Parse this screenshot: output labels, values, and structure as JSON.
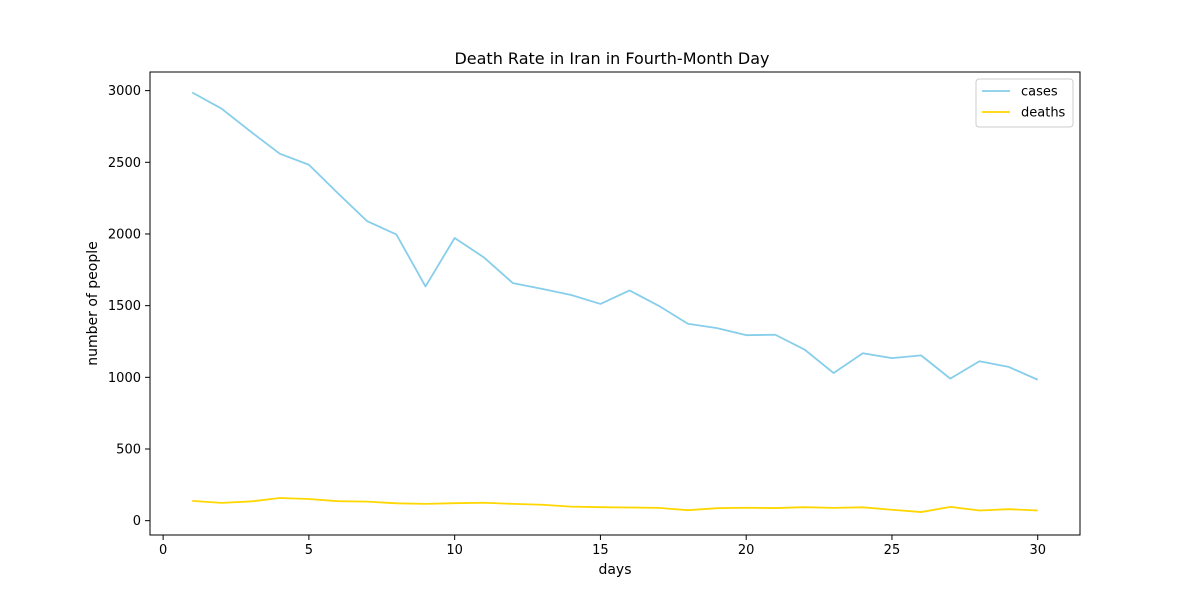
{
  "chart_data": {
    "type": "line",
    "title": "Death Rate in Iran in Fourth-Month Day",
    "xlabel": "days",
    "ylabel": "number of people",
    "xlim": [
      -0.45,
      31.45
    ],
    "ylim": [
      -100,
      3130
    ],
    "xticks": [
      0,
      5,
      10,
      15,
      20,
      25,
      30
    ],
    "yticks": [
      0,
      500,
      1000,
      1500,
      2000,
      2500,
      3000
    ],
    "grid": false,
    "legend": "top-right",
    "x": [
      1,
      2,
      3,
      4,
      5,
      6,
      7,
      8,
      9,
      10,
      11,
      12,
      13,
      14,
      15,
      16,
      17,
      18,
      19,
      20,
      21,
      22,
      23,
      24,
      25,
      26,
      27,
      28,
      29,
      30
    ],
    "series": [
      {
        "name": "cases",
        "color": "#87ceeb",
        "values": [
          2987,
          2875,
          2715,
          2560,
          2483,
          2283,
          2089,
          1997,
          1634,
          1972,
          1837,
          1657,
          1617,
          1574,
          1512,
          1606,
          1499,
          1374,
          1343,
          1294,
          1297,
          1194,
          1030,
          1168,
          1134,
          1153,
          991,
          1112,
          1073,
          983
        ]
      },
      {
        "name": "deaths",
        "color": "#ffd700",
        "values": [
          138,
          124,
          134,
          158,
          151,
          136,
          133,
          121,
          117,
          122,
          125,
          117,
          111,
          98,
          94,
          92,
          89,
          73,
          87,
          90,
          88,
          94,
          89,
          93,
          76,
          60,
          96,
          71,
          80,
          71
        ]
      }
    ]
  }
}
